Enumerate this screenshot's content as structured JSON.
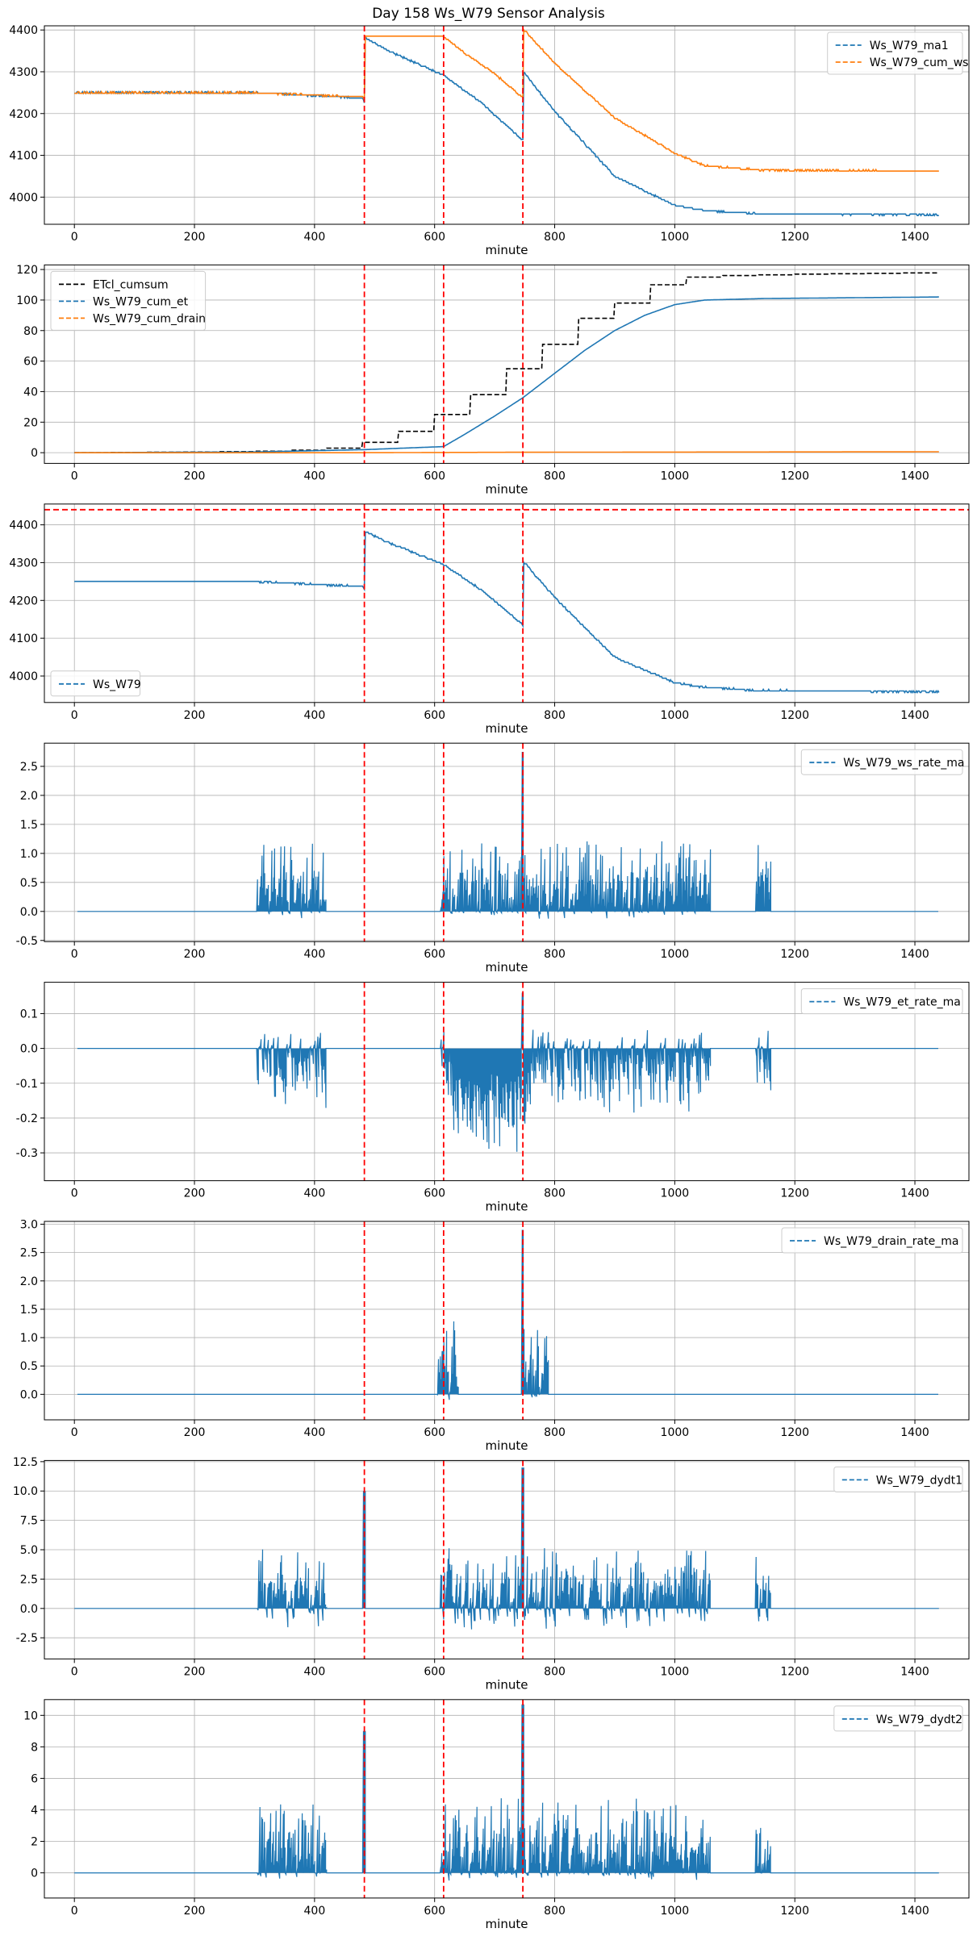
{
  "title": "Day 158 Ws_W79 Sensor Analysis",
  "colors": {
    "blue": "#1f77b4",
    "orange": "#ff7f0e",
    "black": "#000000",
    "marker_red": "#ff0000",
    "grid": "#b0b0b0"
  },
  "chart_data": [
    {
      "type": "line",
      "xlabel": "minute",
      "xlim": [
        -50,
        1490
      ],
      "ylim": [
        3935,
        4410
      ],
      "xticks": [
        0,
        200,
        400,
        600,
        800,
        1000,
        1200,
        1400
      ],
      "yticks": [
        4000,
        4100,
        4200,
        4300,
        4400
      ],
      "vlines": [
        483,
        615,
        747
      ],
      "grid": true,
      "legend_loc": "upper right",
      "series": [
        {
          "name": "Ws_W79_ma1",
          "color": "blue",
          "x": [
            0,
            300,
            480,
            483,
            484,
            520,
            615,
            680,
            745,
            747,
            748,
            800,
            900,
            1000,
            1050,
            1140,
            1440
          ],
          "y": [
            4250,
            4250,
            4237,
            4227,
            4382,
            4352,
            4292,
            4223,
            4138,
            4136,
            4300,
            4205,
            4050,
            3980,
            3968,
            3960,
            3958
          ]
        },
        {
          "name": "Ws_W79_cum_ws",
          "color": "orange",
          "x": [
            0,
            300,
            480,
            483,
            484,
            615,
            650,
            700,
            745,
            747,
            748,
            800,
            900,
            1000,
            1050,
            1140,
            1440
          ],
          "y": [
            4250,
            4250,
            4240,
            4232,
            4385,
            4385,
            4345,
            4295,
            4240,
            4238,
            4402,
            4320,
            4190,
            4105,
            4075,
            4065,
            4062
          ]
        }
      ]
    },
    {
      "type": "line",
      "xlabel": "minute",
      "xlim": [
        -50,
        1490
      ],
      "ylim": [
        -7,
        123
      ],
      "xticks": [
        0,
        200,
        400,
        600,
        800,
        1000,
        1200,
        1400
      ],
      "yticks": [
        0,
        20,
        40,
        60,
        80,
        100,
        120
      ],
      "vlines": [
        483,
        615,
        747
      ],
      "grid": true,
      "legend_loc": "upper left",
      "series": [
        {
          "name": "ETcl_cumsum",
          "color": "black",
          "x": [
            0,
            200,
            300,
            400,
            420,
            483,
            540,
            600,
            660,
            720,
            780,
            840,
            900,
            960,
            1020,
            1080,
            1200,
            1440
          ],
          "y": [
            0,
            0.5,
            1,
            2,
            3,
            7,
            14,
            25,
            38,
            55,
            71,
            88,
            98,
            110,
            115,
            116,
            117,
            118
          ]
        },
        {
          "name": "Ws_W79_cum_et",
          "color": "blue",
          "x": [
            0,
            300,
            483,
            615,
            650,
            700,
            747,
            800,
            850,
            900,
            950,
            1000,
            1050,
            1150,
            1440
          ],
          "y": [
            0,
            0.5,
            2,
            4,
            12,
            24,
            36,
            52,
            67,
            80,
            90,
            97,
            100,
            101,
            102
          ]
        },
        {
          "name": "Ws_W79_cum_drain",
          "color": "orange",
          "x": [
            0,
            483,
            747,
            1440
          ],
          "y": [
            0,
            0,
            0.3,
            0.6
          ]
        }
      ]
    },
    {
      "type": "line",
      "xlabel": "minute",
      "xlim": [
        -50,
        1490
      ],
      "ylim": [
        3930,
        4455
      ],
      "xticks": [
        0,
        200,
        400,
        600,
        800,
        1000,
        1200,
        1400
      ],
      "yticks": [
        4000,
        4100,
        4200,
        4300,
        4400
      ],
      "vlines": [
        483,
        615,
        747
      ],
      "hlines": [
        4440
      ],
      "grid": true,
      "legend_loc": "lower left",
      "series": [
        {
          "name": "Ws_W79",
          "color": "blue",
          "x": [
            0,
            300,
            480,
            483,
            484,
            520,
            615,
            680,
            745,
            747,
            748,
            800,
            900,
            1000,
            1050,
            1140,
            1440
          ],
          "y": [
            4250,
            4250,
            4237,
            4227,
            4382,
            4355,
            4295,
            4225,
            4138,
            4136,
            4302,
            4208,
            4050,
            3982,
            3970,
            3962,
            3958
          ]
        }
      ]
    },
    {
      "type": "line",
      "xlabel": "minute",
      "xlim": [
        -50,
        1490
      ],
      "ylim": [
        -0.52,
        2.9
      ],
      "xticks": [
        0,
        200,
        400,
        600,
        800,
        1000,
        1200,
        1400
      ],
      "yticks": [
        -0.5,
        0.0,
        0.5,
        1.0,
        1.5,
        2.0,
        2.5
      ],
      "vlines": [
        483,
        615,
        747
      ],
      "grid": true,
      "legend_loc": "upper right",
      "series": [
        {
          "name": "Ws_W79_ws_rate_ma",
          "color": "blue",
          "x": [
            5,
            300,
            310,
            420,
            470,
            490,
            610,
            615,
            740,
            745,
            747,
            750,
            760,
            1060,
            1130,
            1160,
            1440
          ],
          "y": [
            0,
            0,
            0.15,
            -0.1,
            0,
            -0.18,
            0,
            0.15,
            -0.2,
            2.75,
            0.1,
            -0.25,
            0.15,
            -0.15,
            0,
            0.15,
            -0.15
          ]
        }
      ]
    },
    {
      "type": "line",
      "xlabel": "minute",
      "xlim": [
        -50,
        1490
      ],
      "ylim": [
        -0.38,
        0.19
      ],
      "xticks": [
        0,
        200,
        400,
        600,
        800,
        1000,
        1200,
        1400
      ],
      "yticks": [
        -0.3,
        -0.2,
        -0.1,
        0.0,
        0.1
      ],
      "vlines": [
        483,
        615,
        747
      ],
      "grid": true,
      "legend_loc": "upper right",
      "series": [
        {
          "name": "Ws_W79_et_rate_ma",
          "color": "blue",
          "x": [
            5,
            300,
            310,
            400,
            460,
            490,
            615,
            650,
            745,
            747,
            760,
            800,
            1050,
            1140,
            1160,
            1440
          ],
          "y": [
            0,
            0,
            0.16,
            -0.17,
            -0.17,
            0.05,
            -0.01,
            -0.13,
            -0.37,
            -0.12,
            -0.11,
            -0.37,
            -0.1,
            -0.16,
            0.16,
            -0.15
          ]
        }
      ]
    },
    {
      "type": "line",
      "xlabel": "minute",
      "xlim": [
        -50,
        1490
      ],
      "ylim": [
        -0.45,
        3.05
      ],
      "xticks": [
        0,
        200,
        400,
        600,
        800,
        1000,
        1200,
        1400
      ],
      "yticks": [
        0.0,
        0.5,
        1.0,
        1.5,
        2.0,
        2.5,
        3.0
      ],
      "vlines": [
        483,
        615,
        747
      ],
      "grid": true,
      "legend_loc": "upper right",
      "series": [
        {
          "name": "Ws_W79_drain_rate_ma",
          "color": "blue",
          "x": [
            5,
            610,
            615,
            640,
            745,
            747,
            750,
            790,
            1440
          ],
          "y": [
            0,
            -0.25,
            0.15,
            0,
            2.9,
            0.1,
            -0.1,
            0.1,
            0
          ]
        }
      ]
    },
    {
      "type": "line",
      "xlabel": "minute",
      "xlim": [
        -50,
        1490
      ],
      "ylim": [
        -4.3,
        12.6
      ],
      "xticks": [
        0,
        200,
        400,
        600,
        800,
        1000,
        1200,
        1400
      ],
      "yticks": [
        -2.5,
        0.0,
        2.5,
        5.0,
        7.5,
        10.0,
        12.5
      ],
      "vlines": [
        483,
        615,
        747
      ],
      "grid": true,
      "legend_loc": "upper right",
      "series": [
        {
          "name": "Ws_W79_dydt1",
          "color": "blue",
          "x": [
            0,
            300,
            310,
            410,
            483,
            485,
            520,
            747,
            790,
            1010,
            1060,
            1140,
            1160,
            1440
          ],
          "y": [
            0,
            0,
            2.0,
            -1.8,
            10.0,
            0,
            2.2,
            12.0,
            -3.8,
            3.5,
            -2.0,
            1.8,
            -1.8,
            1.8
          ]
        }
      ]
    },
    {
      "type": "line",
      "xlabel": "minute",
      "xlim": [
        -50,
        1490
      ],
      "ylim": [
        -1.6,
        11.0
      ],
      "xticks": [
        0,
        200,
        400,
        600,
        800,
        1000,
        1200,
        1400
      ],
      "yticks": [
        0,
        2,
        4,
        6,
        8,
        10
      ],
      "vlines": [
        483,
        615,
        747
      ],
      "grid": true,
      "legend_loc": "upper right",
      "series": [
        {
          "name": "Ws_W79_dydt2",
          "color": "blue",
          "x": [
            0,
            300,
            310,
            410,
            483,
            485,
            520,
            747,
            790,
            1010,
            1060,
            1140,
            1160,
            1440
          ],
          "y": [
            0,
            0,
            0.6,
            -0.6,
            9.0,
            0,
            0.8,
            10.7,
            -1.0,
            0.5,
            -0.5,
            0.6,
            -0.6,
            0.6
          ]
        }
      ]
    }
  ]
}
